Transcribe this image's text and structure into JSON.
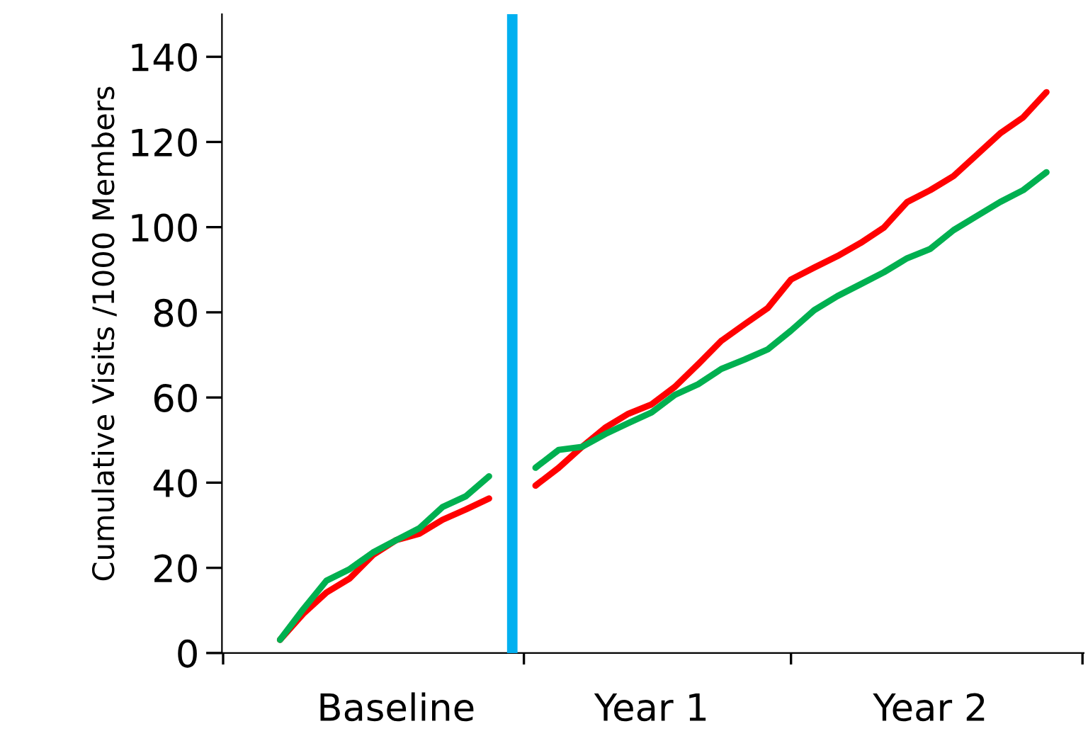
{
  "chart_data": {
    "type": "line",
    "ylabel": "Cumulative Visits /1000 Members",
    "categories": [
      null,
      null,
      null,
      null,
      null,
      "Baseline",
      null,
      null,
      null,
      null,
      null,
      null,
      null,
      null,
      null,
      null,
      "Year 1",
      null,
      null,
      null,
      null,
      null,
      null,
      null,
      null,
      null,
      null,
      null,
      "Year 2",
      null,
      null,
      null,
      null,
      null,
      null
    ],
    "ylim": [
      0,
      150
    ],
    "yticks": [
      0,
      20,
      40,
      60,
      80,
      100,
      120,
      140
    ],
    "marker": "none",
    "line_style": "solid",
    "series": [
      {
        "color": "#ff0000",
        "values": [
          3.1,
          9.2,
          14.2,
          17.5,
          23,
          26.5,
          28,
          31.3,
          33.7,
          36.3,
          null,
          39.3,
          43.5,
          48.4,
          52.9,
          56.2,
          58.4,
          62.5,
          67.8,
          73.3,
          77.2,
          81,
          87.7,
          90.5,
          93.2,
          96.3,
          99.9,
          105.9,
          108.7,
          112,
          117,
          122,
          125.8,
          131.7,
          null
        ]
      },
      {
        "color": "#00b050",
        "values": [
          3.1,
          10.3,
          17,
          19.7,
          23.6,
          26.5,
          29.3,
          34.3,
          36.8,
          41.5,
          null,
          43.5,
          47.7,
          48.4,
          51.4,
          54,
          56.5,
          60.6,
          63.1,
          66.7,
          68.9,
          71.3,
          75.7,
          80.5,
          83.8,
          86.6,
          89.4,
          92.7,
          94.9,
          99.3,
          102.6,
          105.9,
          108.7,
          112.9,
          null
        ]
      },
      {
        "type": "bar",
        "color": "#00b0f0",
        "values": [
          null,
          null,
          null,
          null,
          null,
          null,
          null,
          null,
          null,
          null,
          150,
          null,
          null,
          null,
          null,
          null,
          null,
          null,
          null,
          null,
          null,
          null,
          null,
          null,
          null,
          null,
          null,
          null,
          null,
          null,
          null,
          null,
          null,
          null,
          null
        ]
      }
    ]
  }
}
